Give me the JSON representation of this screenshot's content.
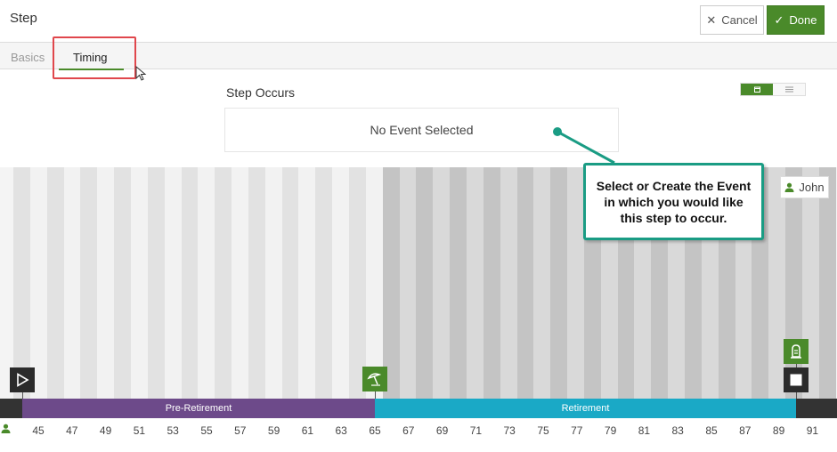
{
  "header": {
    "title": "Step",
    "cancel_label": "Cancel",
    "done_label": "Done"
  },
  "tabs": [
    {
      "label": "Basics",
      "active": false
    },
    {
      "label": "Timing",
      "active": true
    }
  ],
  "step_occurs": {
    "label": "Step Occurs",
    "event_text": "No Event Selected",
    "view_toggle": {
      "active": "calendar-icon",
      "other": "list-icon"
    }
  },
  "callout": {
    "text": "Select or Create the Event in which you would like this step to occur."
  },
  "person_chip": {
    "name": "John",
    "icon": "person-icon"
  },
  "timeline": {
    "phases": [
      {
        "label": "Pre-Retirement",
        "color": "#6d4a8a"
      },
      {
        "label": "Retirement",
        "color": "#1aa9c6"
      }
    ],
    "markers": [
      "play-icon",
      "beach-umbrella-icon",
      "tombstone-icon",
      "stop-icon"
    ],
    "ages": [
      "45",
      "47",
      "49",
      "51",
      "53",
      "55",
      "57",
      "59",
      "61",
      "63",
      "65",
      "67",
      "69",
      "71",
      "73",
      "75",
      "77",
      "79",
      "81",
      "83",
      "85",
      "87",
      "89",
      "91"
    ]
  },
  "colors": {
    "accent": "#4a8a2a",
    "callout_border": "#1a9c84",
    "highlight": "#e0474c"
  }
}
